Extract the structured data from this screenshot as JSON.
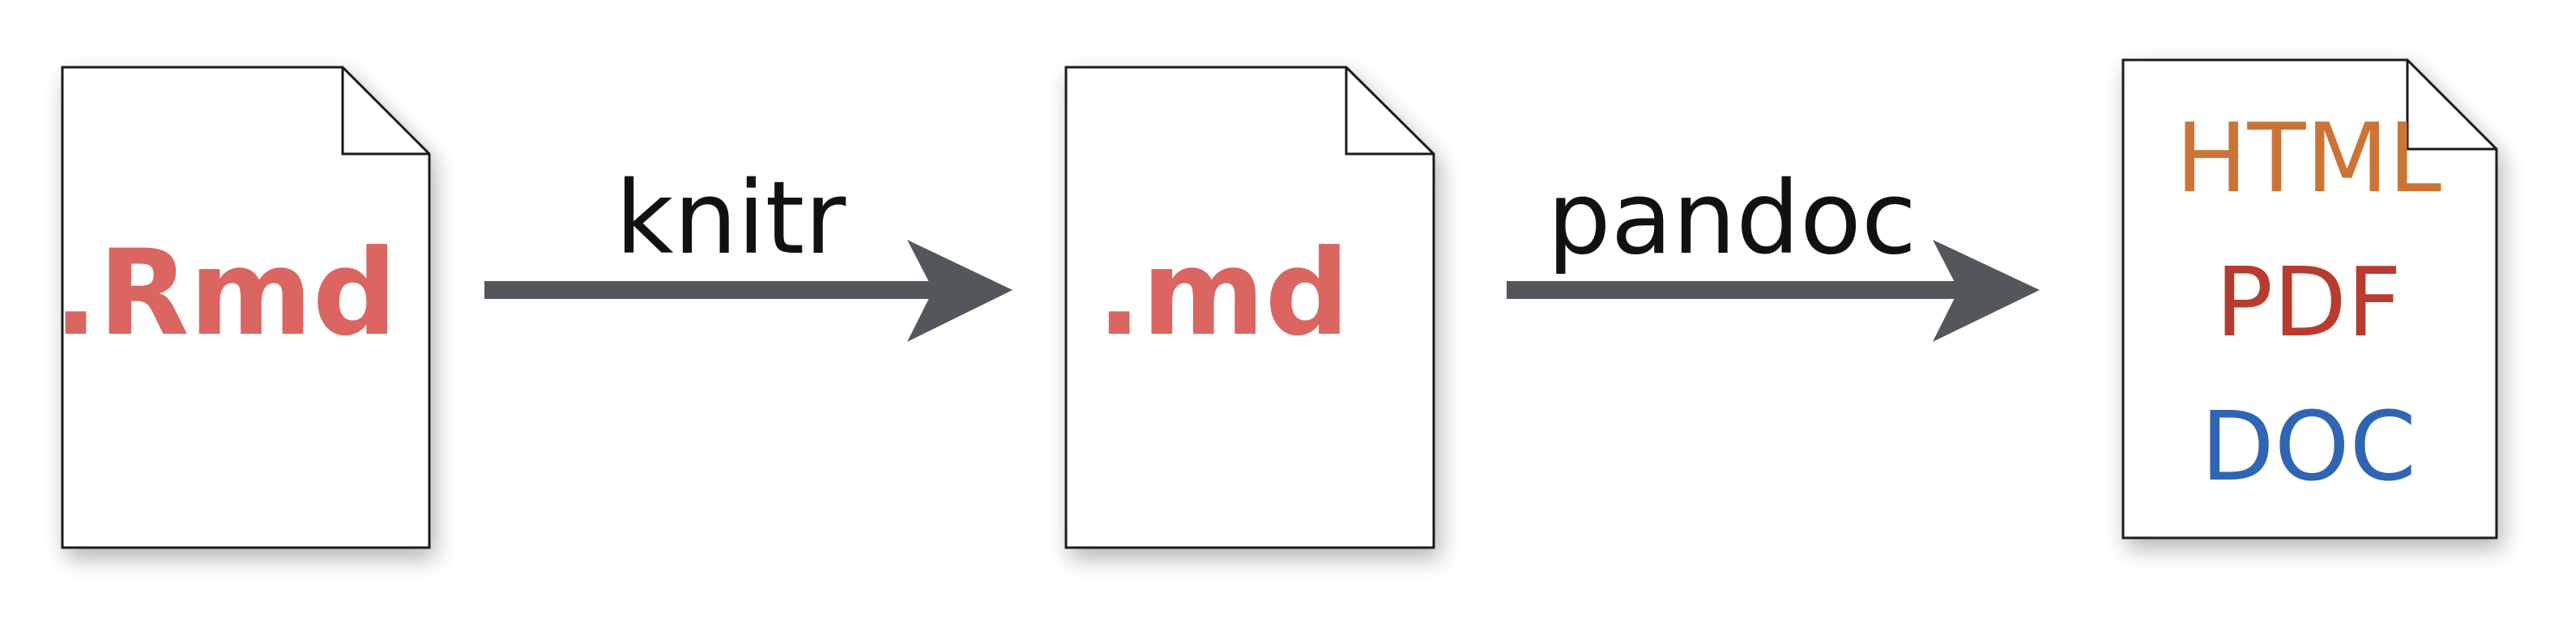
{
  "documents": {
    "source": {
      "label": ".Rmd"
    },
    "intermediate": {
      "label": ".md"
    },
    "outputs": {
      "formats": [
        {
          "label": "HTML",
          "color": "#CC7436"
        },
        {
          "label": "PDF",
          "color": "#B73C2F"
        },
        {
          "label": "DOC",
          "color": "#2F65B4"
        }
      ]
    }
  },
  "steps": {
    "knitr": {
      "label": "knitr"
    },
    "pandoc": {
      "label": "pandoc"
    }
  },
  "colors": {
    "doc_label": "#DB6560",
    "arrow": "#53565B",
    "page_border": "#1a1a1a",
    "text": "#111111"
  }
}
